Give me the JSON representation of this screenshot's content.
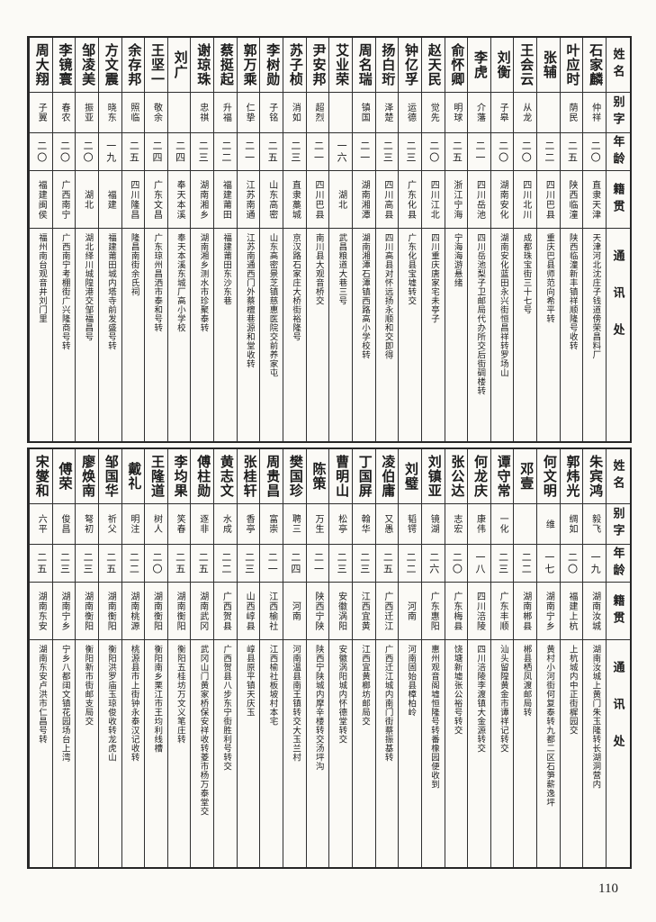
{
  "page": {
    "number": "110"
  },
  "colors": {
    "ink": "#1c1c1c",
    "paper": "#fbfaf6"
  },
  "row_headers": {
    "name": "姓名",
    "zi": "别字",
    "age": "年龄",
    "origin": "籍贯",
    "address": "通讯处"
  },
  "tables": [
    {
      "people": [
        {
          "name": "石家麟",
          "zi": "仲祥",
          "age": "二〇",
          "origin": "直隶天津",
          "address": "天津河北沈庄子钱道傍荣昌料厂"
        },
        {
          "name": "叶应时",
          "zi": "荫民",
          "age": "二五",
          "origin": "陕西临潼",
          "address": "陕西临潼新丰镇祥顺隆号收转"
        },
        {
          "name": "张辅",
          "zi": "",
          "age": "二二",
          "origin": "四川巴县",
          "address": "重庆巴县师范向希平转"
        },
        {
          "name": "王会云",
          "zi": "从龙",
          "age": "二〇",
          "origin": "四川北川",
          "address": "成都珠宝街三十七号"
        },
        {
          "name": "刘衡",
          "zi": "子皋",
          "age": "二〇",
          "origin": "湖南安化",
          "address": "湖南安化蓝田永兴街恒昌祥转罗场山"
        },
        {
          "name": "李虎",
          "zi": "介藩",
          "age": "二一",
          "origin": "四川岳池",
          "address": "四川岳池梨子卫邮局代办所交后街碉楼转"
        },
        {
          "name": "俞怀卿",
          "zi": "明球",
          "age": "二五",
          "origin": "浙江宁海",
          "address": "宁海海游悬绪"
        },
        {
          "name": "赵天民",
          "zi": "觉先",
          "age": "二〇",
          "origin": "四川江北",
          "address": "四川重庆唐家宅未亭子"
        },
        {
          "name": "钟亿孚",
          "zi": "运德",
          "age": "二三",
          "origin": "广东化县",
          "address": "广东化县宝墟转交"
        },
        {
          "name": "扬白珩",
          "zi": "泽楚",
          "age": "二三",
          "origin": "四川高县",
          "address": "四川高县对怀远扬永顺和交即得"
        },
        {
          "name": "周名瑞",
          "zi": "镇国",
          "age": "二一",
          "origin": "湖南湘潭",
          "address": "湖南湘潭石潭镇西路高小学校转"
        },
        {
          "name": "艾业荣",
          "zi": "",
          "age": "一六",
          "origin": "湖北",
          "address": "武昌粮道大巷三号"
        },
        {
          "name": "尹安邦",
          "zi": "超烈",
          "age": "二一",
          "origin": "四川巴县",
          "address": "南川县大观音桥交"
        },
        {
          "name": "苏子桢",
          "zi": "消如",
          "age": "二三",
          "origin": "直隶藁城",
          "address": "京汉路石家庄大桥街裕隆号"
        },
        {
          "name": "李树勋",
          "zi": "子铭",
          "age": "二五",
          "origin": "山东高密",
          "address": "山东高密景芝镇慈惠医院交前养家屯"
        },
        {
          "name": "郭万乘",
          "zi": "仁挚",
          "age": "二一",
          "origin": "江苏南通",
          "address": "江苏南通西门外蔡檀巷源和堂收转"
        },
        {
          "name": "蔡挺起",
          "zi": "升福",
          "age": "二二",
          "origin": "福建莆田",
          "address": "福建莆田东沙东巷"
        },
        {
          "name": "谢琼珠",
          "zi": "忠祺",
          "age": "二三",
          "origin": "湖南湘乡",
          "address": "湖南湘乡测水市珍聚泰转"
        },
        {
          "name": "刘广",
          "zi": "",
          "age": "二四",
          "origin": "奉天本溪",
          "address": "奉天本溪东城厂高小学校"
        },
        {
          "name": "王坚一",
          "zi": "敬余",
          "age": "二四",
          "origin": "广东文昌",
          "address": "广东琼州昌洒市泰和号转"
        },
        {
          "name": "余存邦",
          "zi": "照临",
          "age": "二五",
          "origin": "四川隆昌",
          "address": "隆昌南街余氏祠"
        },
        {
          "name": "方文震",
          "zi": "晓东",
          "age": "一九",
          "origin": "福建",
          "address": "福建莆田城内塔寺前发盛号转"
        },
        {
          "name": "邹凌美",
          "zi": "振亚",
          "age": "二〇",
          "origin": "湖北",
          "address": "湖北绎川城隍港交邹福昌号"
        },
        {
          "name": "李镜寰",
          "zi": "春农",
          "age": "二〇",
          "origin": "广西南宁",
          "address": "广西南宁考棚街广兴隆商号转"
        },
        {
          "name": "周大翔",
          "zi": "子翼",
          "age": "二〇",
          "origin": "福建闽侯",
          "address": "福州南台观音井刘门里"
        }
      ]
    },
    {
      "people": [
        {
          "name": "朱宾鸿",
          "zi": "毅飞",
          "age": "一九",
          "origin": "湖南汝城",
          "address": "湖南汝城上黄门朱玉隆转长湖洞营内"
        },
        {
          "name": "郭炜光",
          "zi": "绸如",
          "age": "二〇",
          "origin": "福建上杭",
          "address": "上杭城内中正街樨园交"
        },
        {
          "name": "何文明",
          "zi": "维",
          "age": "一七",
          "origin": "湖南宁乡",
          "address": "黄村小河街何复泰转九都二区石笋薪逸坪"
        },
        {
          "name": "邓壹",
          "zi": "",
          "age": "二二",
          "origin": "湖南郴县",
          "address": "郴县栖凤渡邮局转"
        },
        {
          "name": "谭守常",
          "zi": "一化",
          "age": "二三",
          "origin": "广东丰顺",
          "address": "汕头留隍黄金市谭祥记转交"
        },
        {
          "name": "何龙庆",
          "zi": "康伟",
          "age": "一八",
          "origin": "四川涪陵",
          "address": "四川涪陵李渡镇大金源转交"
        },
        {
          "name": "张公达",
          "zi": "志宏",
          "age": "二〇",
          "origin": "广东梅县",
          "address": "饶塘新墟张公裕号转交"
        },
        {
          "name": "刘镇亚",
          "zi": "镜湖",
          "age": "二六",
          "origin": "广东惠阳",
          "address": "惠州观音阁墟恒隆号转番橡园便收到"
        },
        {
          "name": "刘璧",
          "zi": "韬锷",
          "age": "二二",
          "origin": "河南",
          "address": "河南固始县樟柏岭"
        },
        {
          "name": "凌伯庸",
          "zi": "又愚",
          "age": "二五",
          "origin": "广西迁江",
          "address": "广西迁江城内南门街蔡振基转"
        },
        {
          "name": "丁国屏",
          "zi": "翰华",
          "age": "二三",
          "origin": "江西宜黄",
          "address": "江西宜黄榔坊邮局交"
        },
        {
          "name": "曹明山",
          "zi": "松亭",
          "age": "二三",
          "origin": "安徽涡阳",
          "address": "安徽涡阳城内怀德堂转交"
        },
        {
          "name": "陈策",
          "zi": "万生",
          "age": "二一",
          "origin": "陕西宁陕",
          "address": "陕西宁陕城内摩辛楼转交汤坪沟"
        },
        {
          "name": "樊国珍",
          "zi": "聘三",
          "age": "二四",
          "origin": "河南",
          "address": "河南温县南王镇转交大玉兰村"
        },
        {
          "name": "周贵昌",
          "zi": "富崇",
          "age": "二一",
          "origin": "江西榆社",
          "address": "江西榆社板坡村本宅"
        },
        {
          "name": "张桂轩",
          "zi": "香亭",
          "age": "二三",
          "origin": "山西崞县",
          "address": "崞县原平镇天庆玉"
        },
        {
          "name": "黄志文",
          "zi": "水成",
          "age": "二二",
          "origin": "广西贺县",
          "address": "广西贺县八步东宁街胜利号转交"
        },
        {
          "name": "傅柱勋",
          "zi": "逐非",
          "age": "二五",
          "origin": "湖南武冈",
          "address": "武冈山门黄家桥保安祥收转菱市杨万泰堂交"
        },
        {
          "name": "李均果",
          "zi": "笑春",
          "age": "二五",
          "origin": "湖南衡阳",
          "address": "衡阳五桂坊万文义笔庄转"
        },
        {
          "name": "王隆道",
          "zi": "树人",
          "age": "二〇",
          "origin": "湖南衡阳",
          "address": "衡阳南乡栗江市王均利线槽"
        },
        {
          "name": "戴礼",
          "zi": "明注",
          "age": "二二",
          "origin": "湖南桃源",
          "address": "桃源县市上街钟永泰汉记收转"
        },
        {
          "name": "邹国华",
          "zi": "祈父",
          "age": "二五",
          "origin": "湖南衡阳",
          "address": "衡阳洪罗庙玉琼俊收转龙虎山"
        },
        {
          "name": "廖焕南",
          "zi": "弩初",
          "age": "二三",
          "origin": "湖南衡阳",
          "address": "衡阳新市街邮支局交"
        },
        {
          "name": "傅荣",
          "zi": "俊昌",
          "age": "二三",
          "origin": "湖南宁乡",
          "address": "宁乡八都阔文镇花园场台上湾"
        },
        {
          "name": "宋燮和",
          "zi": "六平",
          "age": "二五",
          "origin": "湖南东安",
          "address": "湖南东安卢洪市仁昌号转"
        }
      ]
    }
  ]
}
